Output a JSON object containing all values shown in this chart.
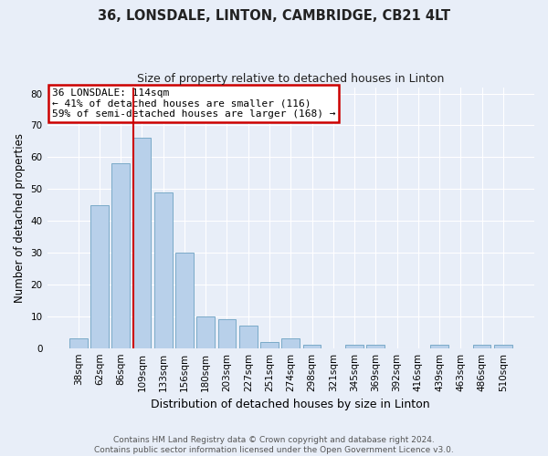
{
  "title1": "36, LONSDALE, LINTON, CAMBRIDGE, CB21 4LT",
  "title2": "Size of property relative to detached houses in Linton",
  "xlabel": "Distribution of detached houses by size in Linton",
  "ylabel": "Number of detached properties",
  "categories": [
    "38sqm",
    "62sqm",
    "86sqm",
    "109sqm",
    "133sqm",
    "156sqm",
    "180sqm",
    "203sqm",
    "227sqm",
    "251sqm",
    "274sqm",
    "298sqm",
    "321sqm",
    "345sqm",
    "369sqm",
    "392sqm",
    "416sqm",
    "439sqm",
    "463sqm",
    "486sqm",
    "510sqm"
  ],
  "values": [
    3,
    45,
    58,
    66,
    49,
    30,
    10,
    9,
    7,
    2,
    3,
    1,
    0,
    1,
    1,
    0,
    0,
    1,
    0,
    1,
    1
  ],
  "bar_color": "#b8d0ea",
  "bar_edge_color": "#7aaac8",
  "vline_color": "#cc0000",
  "vline_x_index": 3,
  "annotation_text1": "36 LONSDALE: 114sqm",
  "annotation_text2": "← 41% of detached houses are smaller (116)",
  "annotation_text3": "59% of semi-detached houses are larger (168) →",
  "annotation_box_color": "#ffffff",
  "annotation_box_edge": "#cc0000",
  "ylim": [
    0,
    82
  ],
  "yticks": [
    0,
    10,
    20,
    30,
    40,
    50,
    60,
    70,
    80
  ],
  "footer1": "Contains HM Land Registry data © Crown copyright and database right 2024.",
  "footer2": "Contains public sector information licensed under the Open Government Licence v3.0.",
  "background_color": "#e8eef8",
  "plot_bg_color": "#e8eef8",
  "title1_fontsize": 10.5,
  "title2_fontsize": 9,
  "ylabel_fontsize": 8.5,
  "xlabel_fontsize": 9,
  "tick_fontsize": 7.5,
  "annot_fontsize": 8,
  "footer_fontsize": 6.5
}
